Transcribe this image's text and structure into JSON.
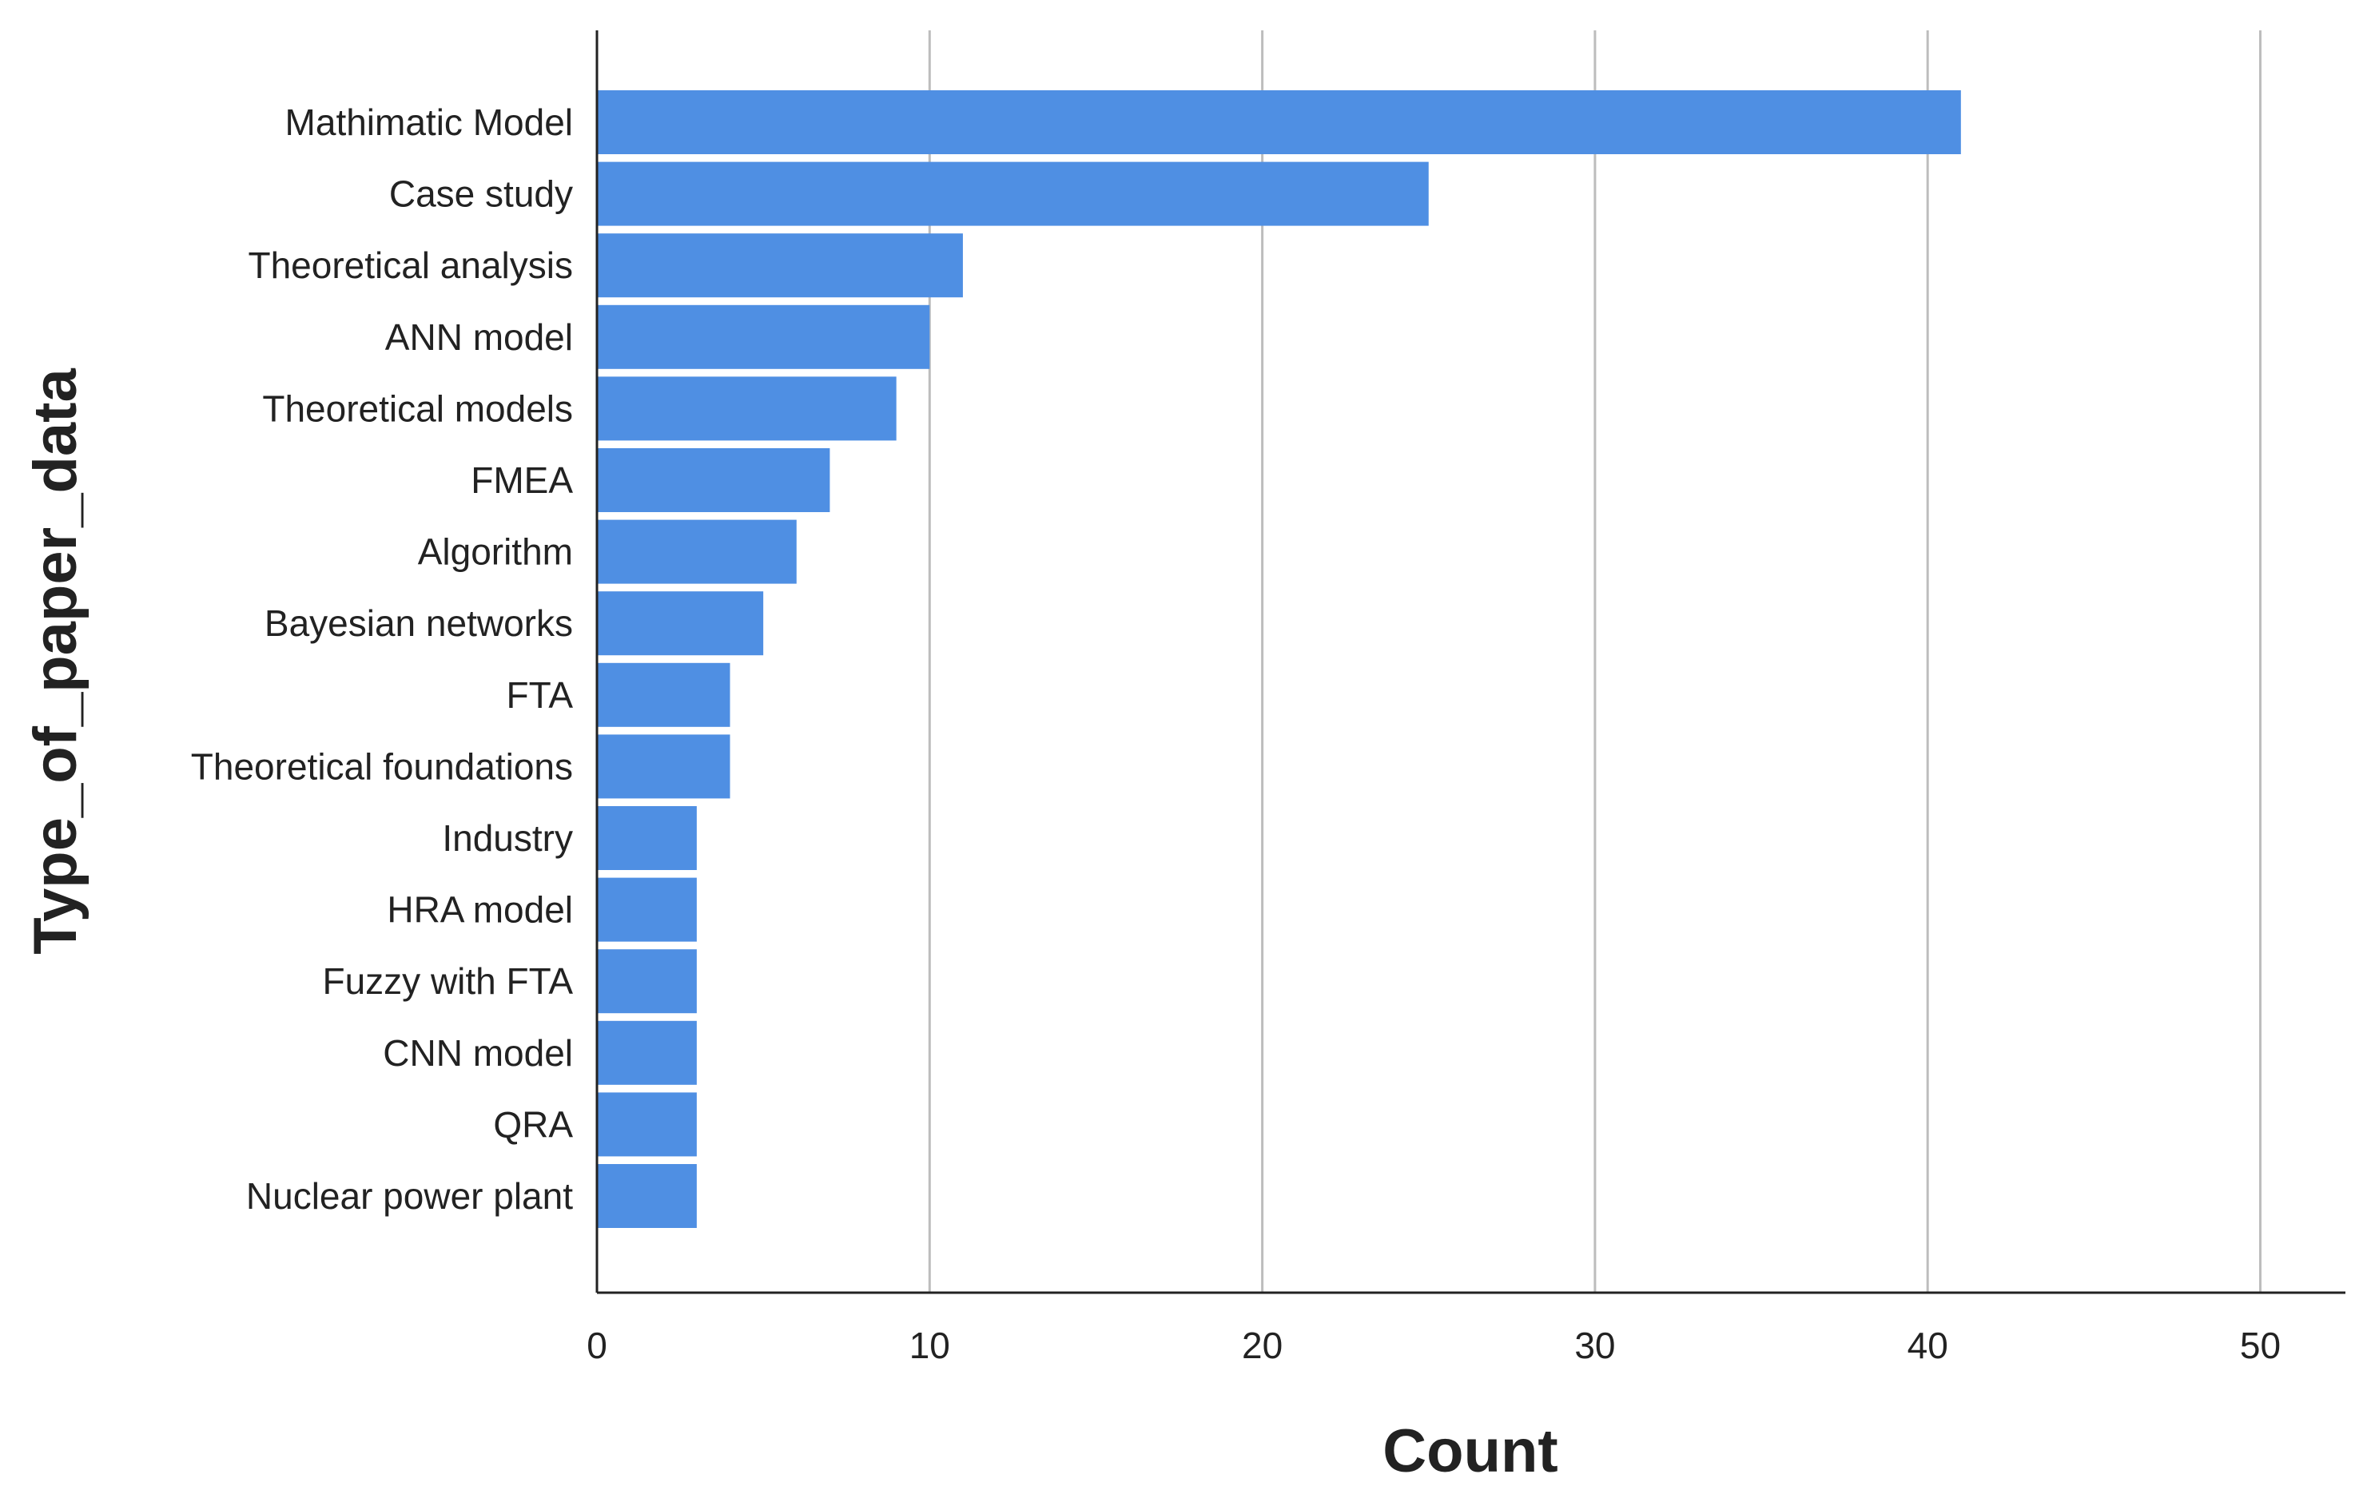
{
  "chart_data": {
    "type": "bar",
    "orientation": "horizontal",
    "categories": [
      "Mathimatic Model",
      "Case study",
      "Theoretical analysis",
      "ANN model",
      "Theoretical models",
      "FMEA",
      "Algorithm",
      "Bayesian networks",
      "FTA",
      "Theoretical foundations",
      "Industry",
      "HRA model",
      "Fuzzy with FTA",
      "CNN model",
      "QRA",
      "Nuclear power plant"
    ],
    "values": [
      41,
      25,
      11,
      10,
      9,
      7,
      6,
      5,
      4,
      4,
      3,
      3,
      3,
      3,
      3,
      3
    ],
    "xlabel": "Count",
    "ylabel": "Type_of_paper_data",
    "xlim": [
      0,
      52
    ],
    "xticks": [
      0,
      10,
      20,
      30,
      40,
      50
    ],
    "grid": "vertical",
    "bar_color": "#4f8fe3"
  }
}
